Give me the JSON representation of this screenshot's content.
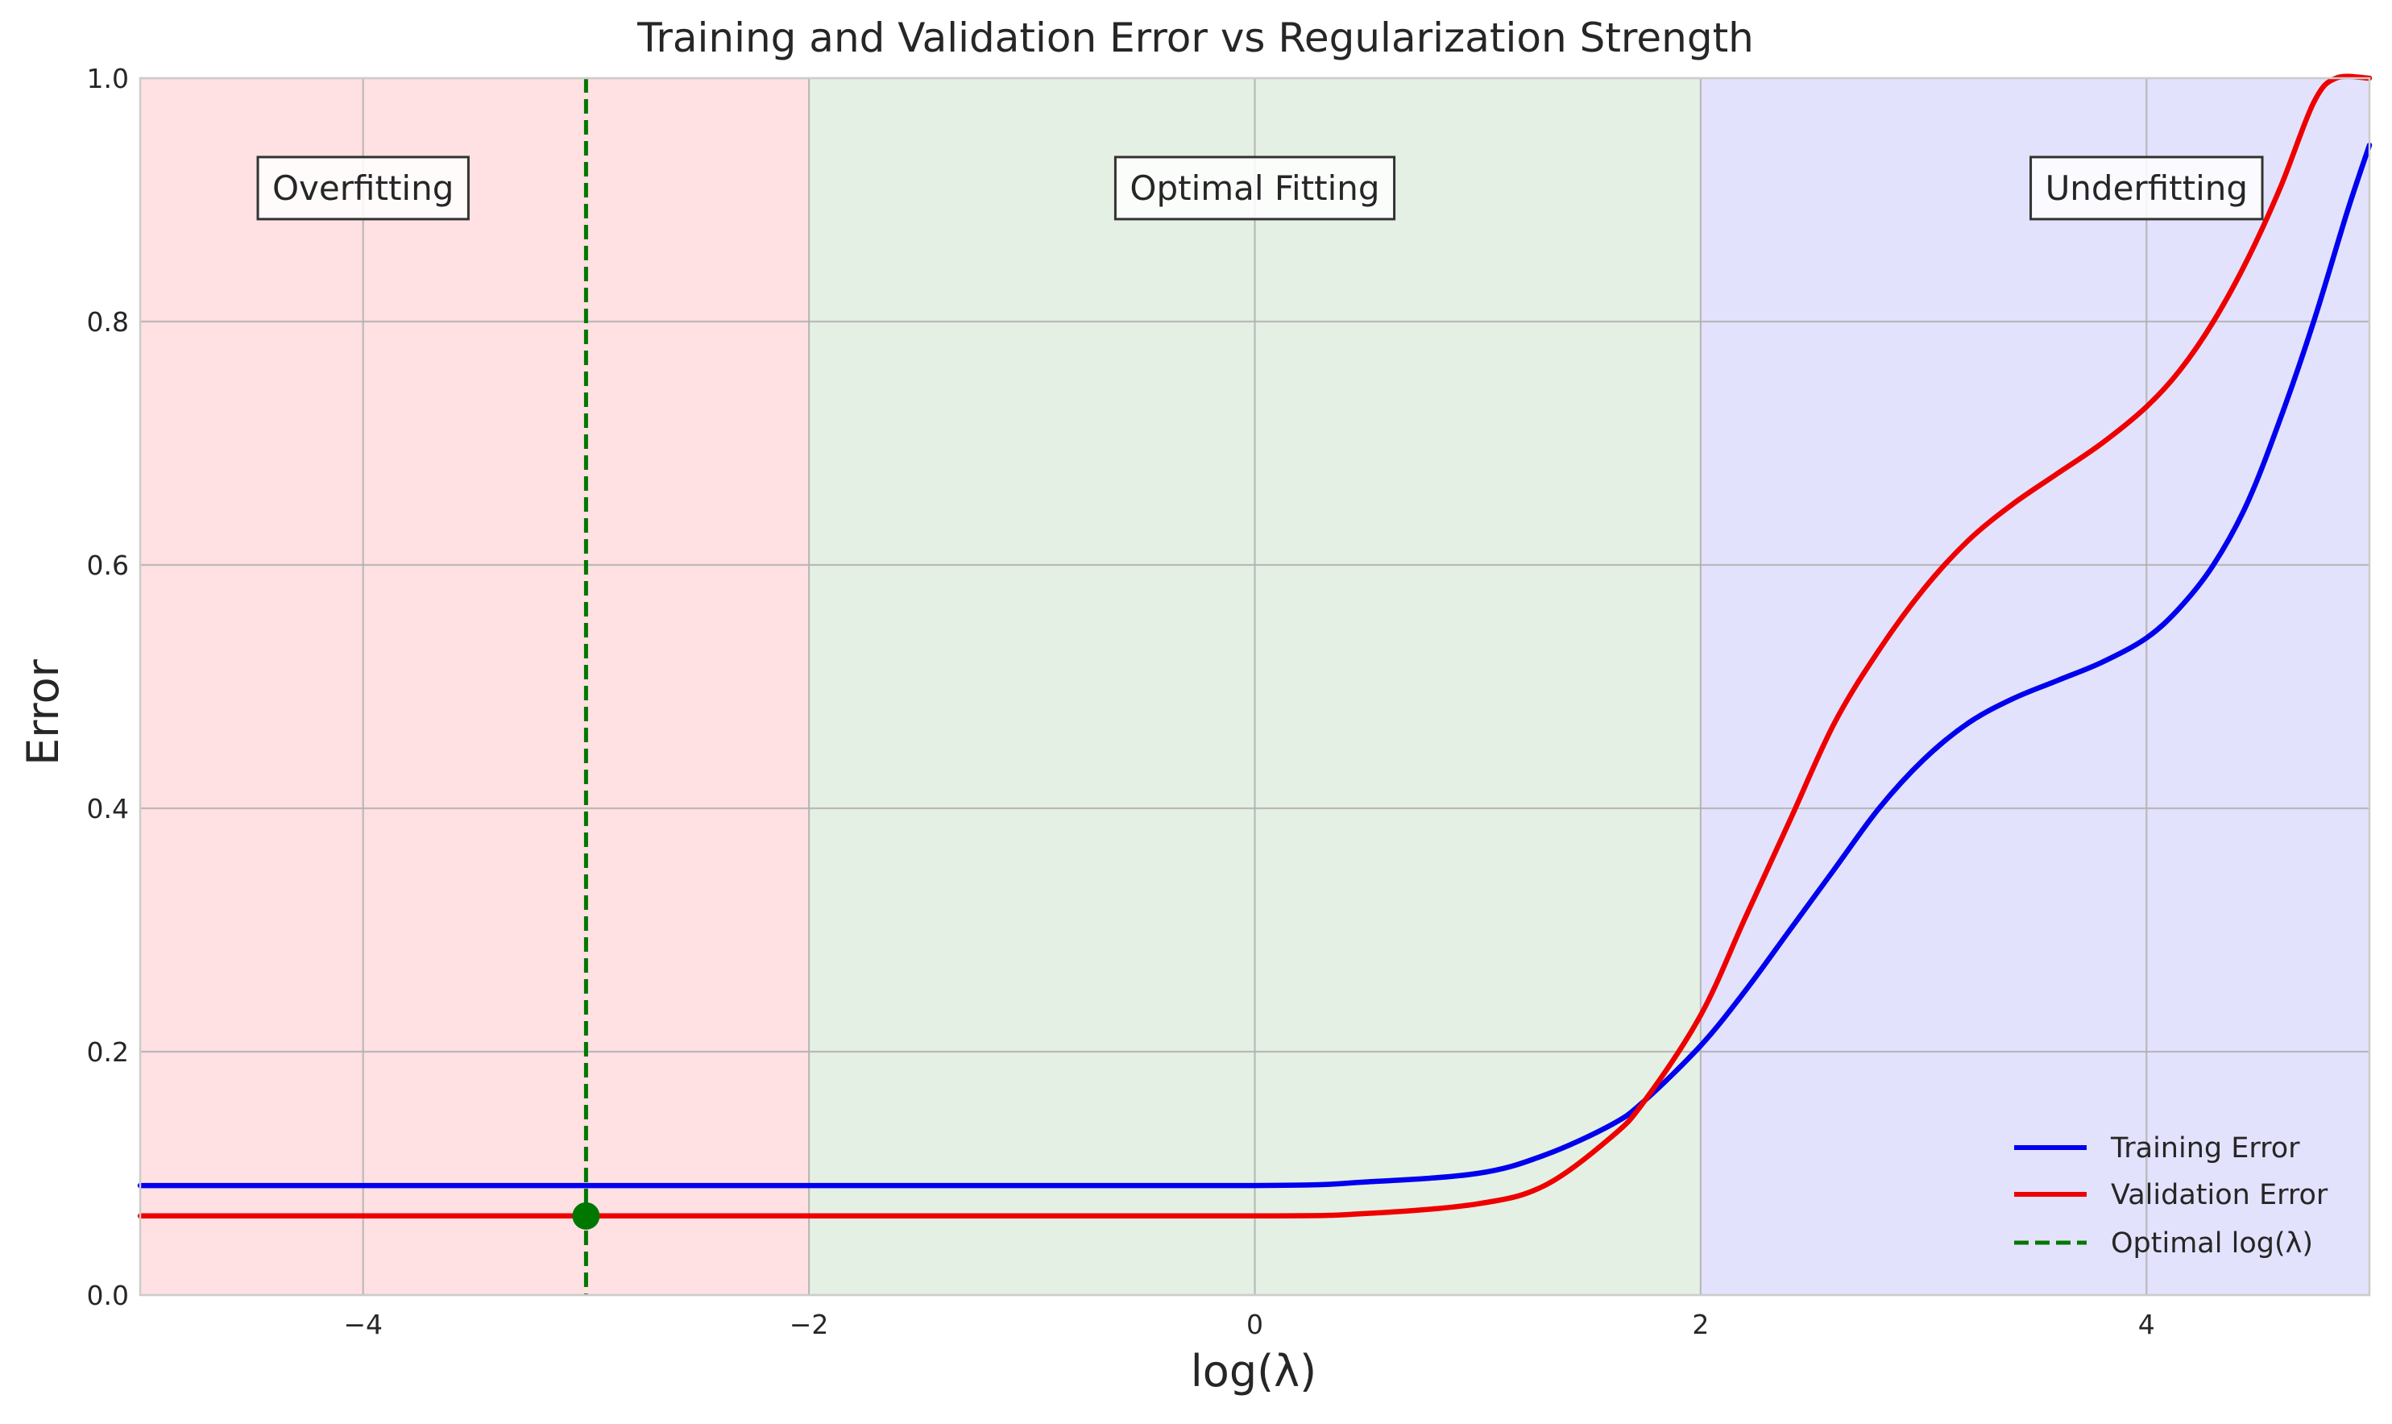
{
  "chart_data": {
    "type": "line",
    "title": "Training and Validation Error vs Regularization Strength",
    "xlabel": "log(λ)",
    "ylabel": "Error",
    "xlim": [
      -5,
      5
    ],
    "ylim": [
      0,
      1.0
    ],
    "xticks": [
      -4,
      -2,
      0,
      2,
      4
    ],
    "xtick_labels": [
      "−4",
      "−2",
      "0",
      "2",
      "4"
    ],
    "yticks": [
      0.0,
      0.2,
      0.4,
      0.6,
      0.8,
      1.0
    ],
    "ytick_labels": [
      "0.0",
      "0.2",
      "0.4",
      "0.6",
      "0.8",
      "1.0"
    ],
    "grid": true,
    "legend_position": "lower-right",
    "regions": [
      {
        "label": "Overfitting",
        "x_range": [
          -5,
          -2
        ],
        "color": "#ffe0e3",
        "label_x": -4
      },
      {
        "label": "Optimal Fitting",
        "x_range": [
          -2,
          2
        ],
        "color": "#e5f0e4",
        "label_x": 0
      },
      {
        "label": "Underfitting",
        "x_range": [
          2,
          5
        ],
        "color": "#e3e2fc",
        "label_x": 4
      }
    ],
    "region_label_y": 0.91,
    "series": [
      {
        "name": "Training Error",
        "color": "#0000ee",
        "style": "solid",
        "x": [
          -5,
          -2,
          0,
          0.5,
          1.0,
          1.3,
          1.6,
          1.75,
          2.0,
          2.2,
          2.4,
          2.6,
          2.8,
          3.0,
          3.2,
          3.4,
          3.6,
          3.8,
          4.0,
          4.15,
          4.3,
          4.45,
          4.6,
          4.75,
          4.9,
          5.0
        ],
        "y": [
          0.09,
          0.09,
          0.09,
          0.093,
          0.1,
          0.115,
          0.14,
          0.16,
          0.205,
          0.25,
          0.3,
          0.35,
          0.4,
          0.44,
          0.47,
          0.49,
          0.505,
          0.52,
          0.54,
          0.565,
          0.6,
          0.65,
          0.72,
          0.8,
          0.89,
          0.945
        ]
      },
      {
        "name": "Validation Error",
        "color": "#ee0000",
        "style": "solid",
        "x": [
          -5,
          -2,
          0,
          0.5,
          1.0,
          1.3,
          1.6,
          1.75,
          2.0,
          2.2,
          2.4,
          2.6,
          2.8,
          3.0,
          3.2,
          3.4,
          3.6,
          3.8,
          4.0,
          4.15,
          4.3,
          4.45,
          4.6,
          4.75,
          4.85,
          5.0
        ],
        "y": [
          0.065,
          0.065,
          0.065,
          0.067,
          0.075,
          0.09,
          0.13,
          0.16,
          0.23,
          0.31,
          0.39,
          0.47,
          0.53,
          0.58,
          0.62,
          0.65,
          0.675,
          0.7,
          0.73,
          0.76,
          0.8,
          0.85,
          0.91,
          0.98,
          1.0,
          1.0
        ]
      }
    ],
    "optimal": {
      "name": "Optimal log(λ)",
      "x": -3,
      "y": 0.065,
      "color": "#007700",
      "style": "dashed"
    }
  }
}
